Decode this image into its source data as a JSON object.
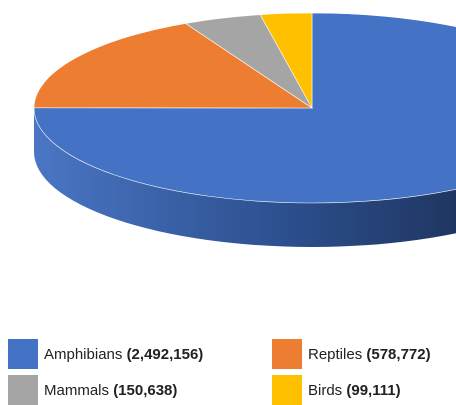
{
  "chart_data": {
    "type": "pie",
    "title": "",
    "categories": [
      "Amphibians",
      "Reptiles",
      "Mammals",
      "Birds"
    ],
    "values": [
      2492156,
      578772,
      150638,
      99111
    ],
    "value_labels": [
      "(2,492,156)",
      "(578,772)",
      "(150,638)",
      "(99,111)"
    ],
    "colors": [
      "#4472c4",
      "#ed7d31",
      "#a5a5a5",
      "#ffc000"
    ],
    "style": "3d",
    "legend_position": "bottom"
  }
}
